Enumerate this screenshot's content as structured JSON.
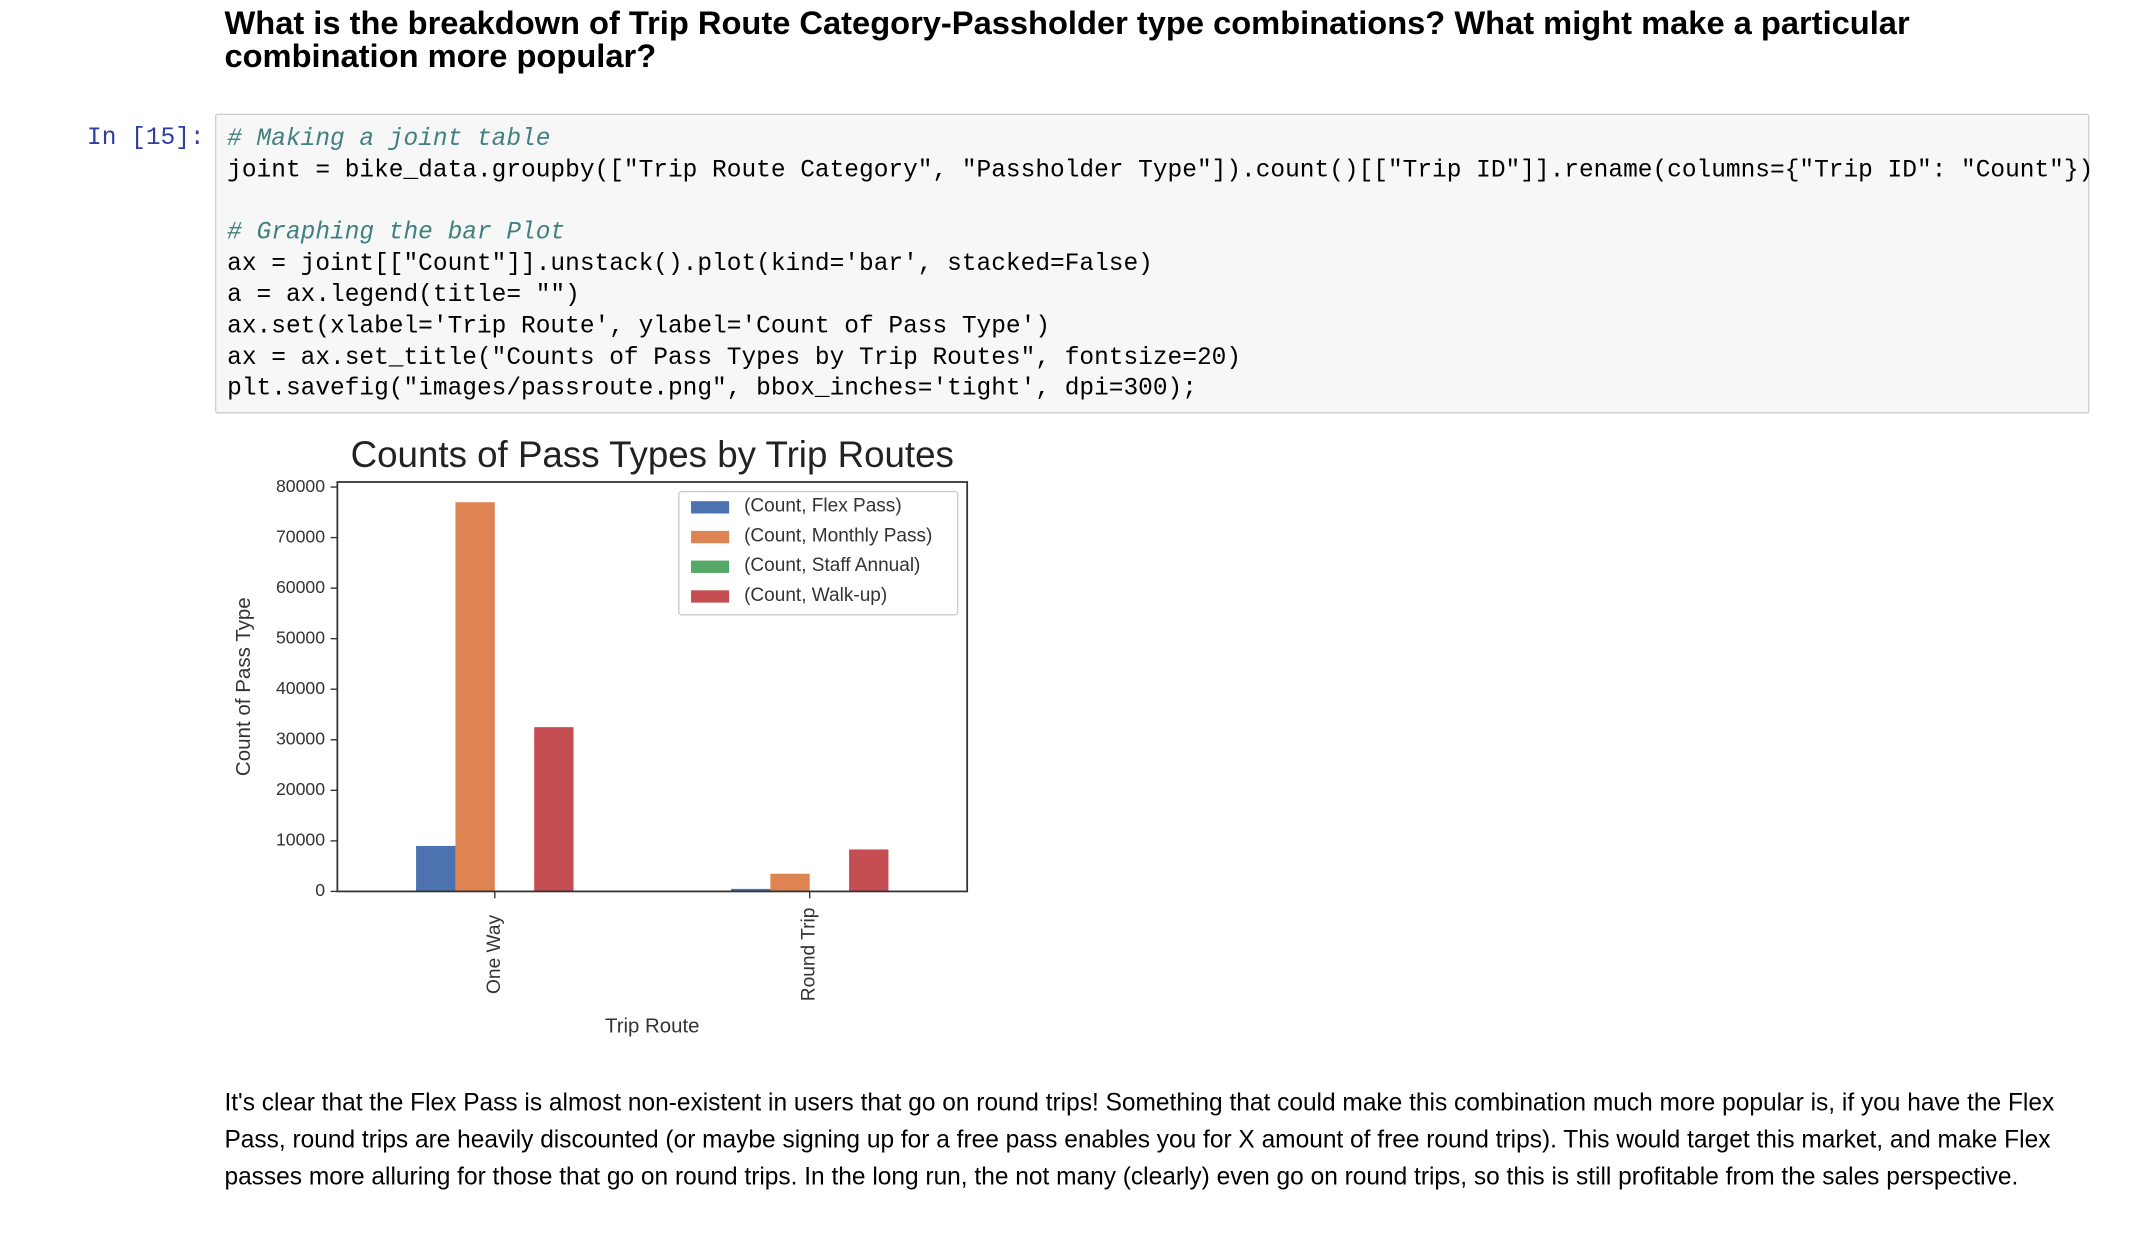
{
  "heading": "What is the breakdown of Trip Route Category-Passholder type combinations? What might make a particular combination more popular?",
  "cell": {
    "prompt": "In [15]:",
    "blocks": [
      [
        "# Making a joint table",
        "joint = bike_data.groupby([\"Trip Route Category\", \"Passholder Type\"]).count()[[\"Trip ID\"]].rename(columns={\"Trip ID\": \"Count\"})"
      ],
      [
        "# Graphing the bar Plot",
        "ax = joint[[\"Count\"]].unstack().plot(kind='bar', stacked=False)",
        "a = ax.legend(title= \"\")",
        "ax.set(xlabel='Trip Route', ylabel='Count of Pass Type')",
        "ax = ax.set_title(\"Counts of Pass Types by Trip Routes\", fontsize=20)",
        "plt.savefig(\"images/passroute.png\", bbox_inches='tight', dpi=300);"
      ]
    ]
  },
  "chart_data": {
    "type": "bar",
    "title": "Counts of Pass Types by Trip Routes",
    "x_label": "Trip Route",
    "y_label": "Count of Pass Type",
    "categories": [
      "One Way",
      "Round Trip"
    ],
    "series": [
      {
        "name": "(Count, Flex Pass)",
        "color": "#4c72b0",
        "values": [
          9000,
          500
        ]
      },
      {
        "name": "(Count, Monthly Pass)",
        "color": "#dd8452",
        "values": [
          77000,
          3500
        ]
      },
      {
        "name": "(Count, Staff Annual)",
        "color": "#55a868",
        "values": [
          0,
          0
        ]
      },
      {
        "name": "(Count, Walk-up)",
        "color": "#c44e52",
        "values": [
          32500,
          8300
        ]
      }
    ],
    "ylim": [
      0,
      81000
    ],
    "yticks": [
      0,
      10000,
      20000,
      30000,
      40000,
      50000,
      60000,
      70000,
      80000
    ],
    "legend": "upper right"
  },
  "paragraph": "It's clear that the Flex Pass is almost non-existent in users that go on round trips! Something that could make this combination much more popular is, if you have the Flex Pass, round trips are heavily discounted (or maybe signing up for a free pass enables you for X amount of free round trips). This would target this market, and make Flex passes more alluring for those that go on round trips. In the long run, the not many (clearly) even go on round trips, so this is still profitable from the sales perspective."
}
